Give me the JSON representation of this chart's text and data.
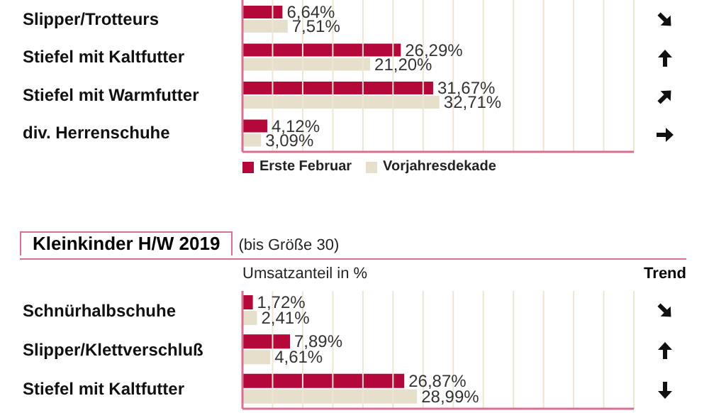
{
  "chart_data": [
    {
      "type": "bar",
      "orientation": "horizontal",
      "categories": [
        "Slipper/Trotteurs",
        "Stiefel mit Kaltfutter",
        "Stiefel mit Warmfutter",
        "div. Herrenschuhe"
      ],
      "series": [
        {
          "name": "Erste Februar",
          "color": "#b5083a",
          "values": [
            6.64,
            26.29,
            31.67,
            4.12
          ],
          "value_labels": [
            "6,64%",
            "26,29%",
            "31,67%",
            "4,12%"
          ]
        },
        {
          "name": "Vorjahresdekade",
          "color": "#e6dfcb",
          "values": [
            7.51,
            21.2,
            32.71,
            3.09
          ],
          "value_labels": [
            "7,51%",
            "21,20%",
            "32,71%",
            "3,09%"
          ]
        }
      ],
      "xlim": [
        0,
        65
      ],
      "xticks": [
        {
          "value": 0,
          "label": null
        },
        {
          "value": 5,
          "label": null
        },
        {
          "value": 10,
          "label": null
        },
        {
          "value": 15,
          "label": null
        },
        {
          "value": 20,
          "label": null
        },
        {
          "value": 25,
          "label": null
        },
        {
          "value": 30,
          "label": null
        },
        {
          "value": 35,
          "label": null
        },
        {
          "value": 40,
          "label": null
        },
        {
          "value": 45,
          "label": null
        },
        {
          "value": 50,
          "label": null
        },
        {
          "value": 55,
          "label": null
        },
        {
          "value": 60,
          "label": null
        },
        {
          "value": 65,
          "label": null
        }
      ],
      "grid": "x",
      "legend": "bottom",
      "tick_labels": "y"
    },
    {
      "type": "bar",
      "orientation": "horizontal",
      "title": "Kleinkinder H/W 2019",
      "subtitle": "(bis Größe 30)",
      "xlabel": "Umsatzanteil in %",
      "annotations": [
        "Trend"
      ],
      "categories": [
        "Schnürhalbschuhe",
        "Slipper/Klettverschluß",
        "Stiefel mit Kaltfutter"
      ],
      "series": [
        {
          "color": "#b5083a",
          "values": [
            1.72,
            7.89,
            26.87
          ],
          "value_labels": [
            "1,72%",
            "7,89%",
            "26,87%"
          ]
        },
        {
          "color": "#e6dfcb",
          "values": [
            2.41,
            4.61,
            28.99
          ],
          "value_labels": [
            "2,41%",
            "4,61%",
            "28,99%"
          ]
        }
      ],
      "xlim": [
        0,
        65
      ],
      "xticks": [
        {
          "value": 0,
          "label": null
        },
        {
          "value": 5,
          "label": null
        },
        {
          "value": 10,
          "label": null
        },
        {
          "value": 15,
          "label": null
        },
        {
          "value": 20,
          "label": null
        },
        {
          "value": 25,
          "label": null
        },
        {
          "value": 30,
          "label": null
        },
        {
          "value": 35,
          "label": null
        },
        {
          "value": 40,
          "label": null
        },
        {
          "value": 45,
          "label": null
        },
        {
          "value": 50,
          "label": null
        },
        {
          "value": 55,
          "label": null
        },
        {
          "value": 60,
          "label": null
        },
        {
          "value": 65,
          "label": null
        }
      ],
      "grid": "x",
      "legend": false,
      "tick_labels": "y"
    }
  ]
}
